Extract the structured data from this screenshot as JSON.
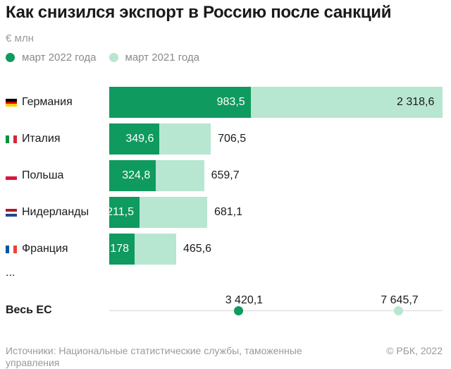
{
  "title": "Как снизился экспорт в Россию после санкций",
  "unit": "€ млн",
  "legend": {
    "current": "март 2022 года",
    "previous": "март 2021 года"
  },
  "colors": {
    "current": "#0f9a5f",
    "previous": "#b7e6d1",
    "line": "#d5d5d5"
  },
  "icons": [
    "flag-germany-icon",
    "flag-italy-icon",
    "flag-poland-icon",
    "flag-netherlands-icon",
    "flag-france-icon"
  ],
  "ellipsis": "...",
  "eu": {
    "label": "Весь ЕС",
    "current": 3420.1,
    "previous": 7645.7,
    "current_text": "3 420,1",
    "previous_text": "7 645,7"
  },
  "source": "Источники: Национальные статистические службы, таможенные управления",
  "copyright": "© РБК, 2022",
  "chart_data": {
    "type": "bar",
    "orientation": "horizontal",
    "title": "Как снизился экспорт в Россию после санкций",
    "unit": "€ млн",
    "categories": [
      "Германия",
      "Италия",
      "Польша",
      "Нидерланды",
      "Франция"
    ],
    "series": [
      {
        "name": "март 2022 года",
        "values": [
          983.5,
          349.6,
          324.8,
          211.5,
          178
        ],
        "labels": [
          "983,5",
          "349,6",
          "324,8",
          "211,5",
          "178"
        ]
      },
      {
        "name": "март 2021 года",
        "values": [
          2318.6,
          706.5,
          659.7,
          681.1,
          465.6
        ],
        "labels": [
          "2 318,6",
          "706,5",
          "659,7",
          "681,1",
          "465,6"
        ]
      }
    ],
    "legend": "top-left",
    "grid": false
  }
}
